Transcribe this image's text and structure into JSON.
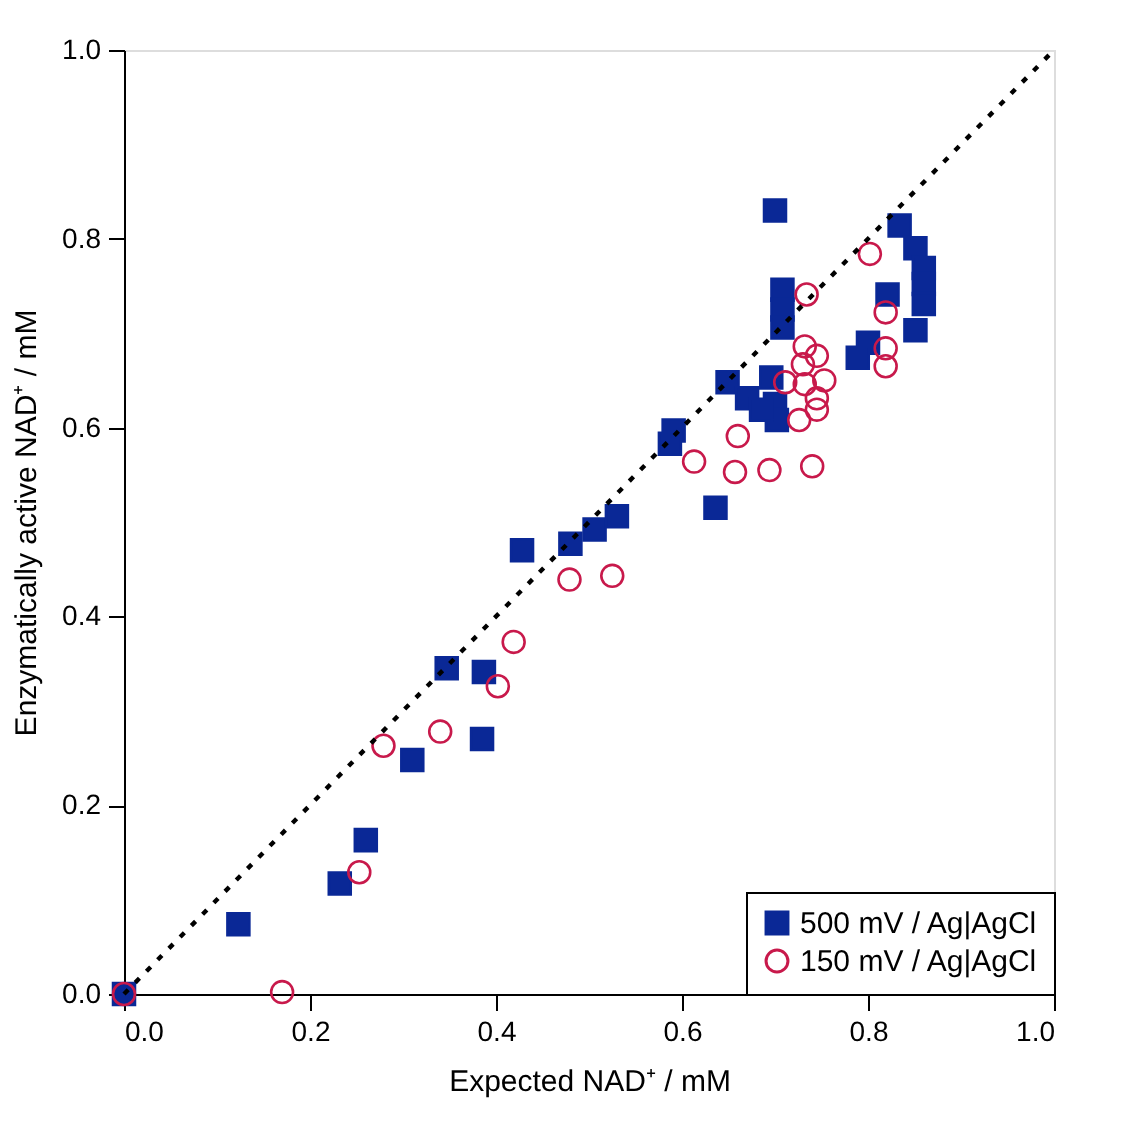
{
  "chart_data": {
    "type": "scatter",
    "xlabel": "Expected NAD⁺ / mM",
    "ylabel": "Enzymatically active NAD⁺ / mM",
    "xlim": [
      0,
      1
    ],
    "ylim": [
      0,
      1
    ],
    "xticks": [
      {
        "value": 0,
        "label": "0.0"
      },
      0.2,
      0.4,
      0.6,
      0.8,
      {
        "value": 1,
        "label": "1.0"
      }
    ],
    "yticks": [
      {
        "value": 0,
        "label": "0.0"
      },
      0.2,
      0.4,
      0.6,
      0.8,
      {
        "value": 1,
        "label": "1.0"
      }
    ],
    "grid": false,
    "legend": "bottom right",
    "series": [
      {
        "name": "500 mV / Ag|AgCl",
        "color": "#0a2896",
        "marker": "square",
        "x": [
          0,
          0.123,
          0.232,
          0.26,
          0.31,
          0.347,
          0.385,
          0.387,
          0.428,
          0.48,
          0.506,
          0.53,
          0.7,
          0.834,
          0.851,
          0.86,
          0.86,
          0.86,
          0.821,
          0.851,
          0.708,
          0.708,
          0.708,
          0.8,
          0.789,
          0.591,
          0.587,
          0.649,
          0.67,
          0.696,
          0.7,
          0.702,
          0.685,
          0.636
        ],
        "values": [
          0,
          0.074,
          0.117,
          0.163,
          0.248,
          0.345,
          0.27,
          0.341,
          0.47,
          0.477,
          0.492,
          0.506,
          0.83,
          0.814,
          0.79,
          0.769,
          0.752,
          0.731,
          0.741,
          0.703,
          0.746,
          0.725,
          0.706,
          0.69,
          0.674,
          0.597,
          0.583,
          0.648,
          0.631,
          0.653,
          0.625,
          0.608,
          0.619,
          0.515
        ]
      },
      {
        "name": "150 mV / Ag|AgCl",
        "color": "#c8194b",
        "marker": "circle",
        "x": [
          0,
          0.17,
          0.253,
          0.279,
          0.34,
          0.402,
          0.419,
          0.479,
          0.525,
          0.802,
          0.734,
          0.819,
          0.819,
          0.819,
          0.732,
          0.745,
          0.73,
          0.753,
          0.711,
          0.732,
          0.745,
          0.745,
          0.726,
          0.66,
          0.613,
          0.657,
          0.694,
          0.74
        ],
        "values": [
          0,
          0.002,
          0.129,
          0.263,
          0.278,
          0.326,
          0.373,
          0.439,
          0.443,
          0.784,
          0.741,
          0.722,
          0.684,
          0.665,
          0.686,
          0.676,
          0.667,
          0.65,
          0.648,
          0.646,
          0.631,
          0.619,
          0.608,
          0.591,
          0.564,
          0.553,
          0.555,
          0.559
        ]
      },
      {
        "type": "line",
        "color": "#000000",
        "line_style": "dotted",
        "x": [
          0,
          1
        ],
        "values": [
          0,
          1
        ]
      }
    ]
  }
}
